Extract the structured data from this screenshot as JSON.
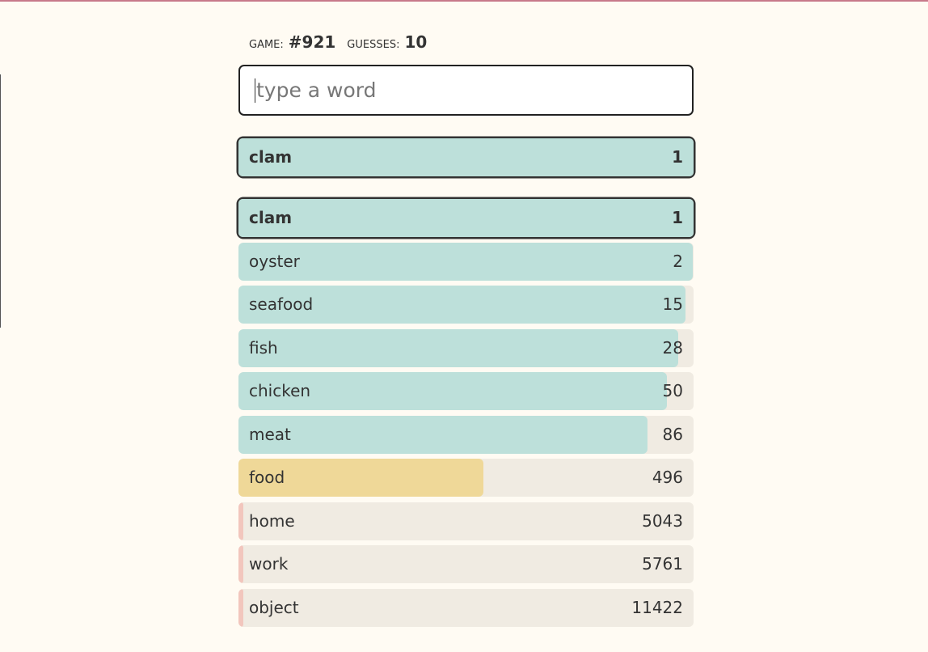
{
  "header": {
    "game_label": "GAME:",
    "game_number": "#921",
    "guesses_label": "GUESSES:",
    "guesses_count": "10"
  },
  "input": {
    "placeholder": "type a word"
  },
  "last_guess": {
    "word": "clam",
    "rank": 1
  },
  "guesses": [
    {
      "word": "clam",
      "rank": 1
    },
    {
      "word": "oyster",
      "rank": 2
    },
    {
      "word": "seafood",
      "rank": 15
    },
    {
      "word": "fish",
      "rank": 28
    },
    {
      "word": "chicken",
      "rank": 50
    },
    {
      "word": "meat",
      "rank": 86
    },
    {
      "word": "food",
      "rank": 496
    },
    {
      "word": "home",
      "rank": 5043
    },
    {
      "word": "work",
      "rank": 5761
    },
    {
      "word": "object",
      "rank": 11422
    }
  ]
}
